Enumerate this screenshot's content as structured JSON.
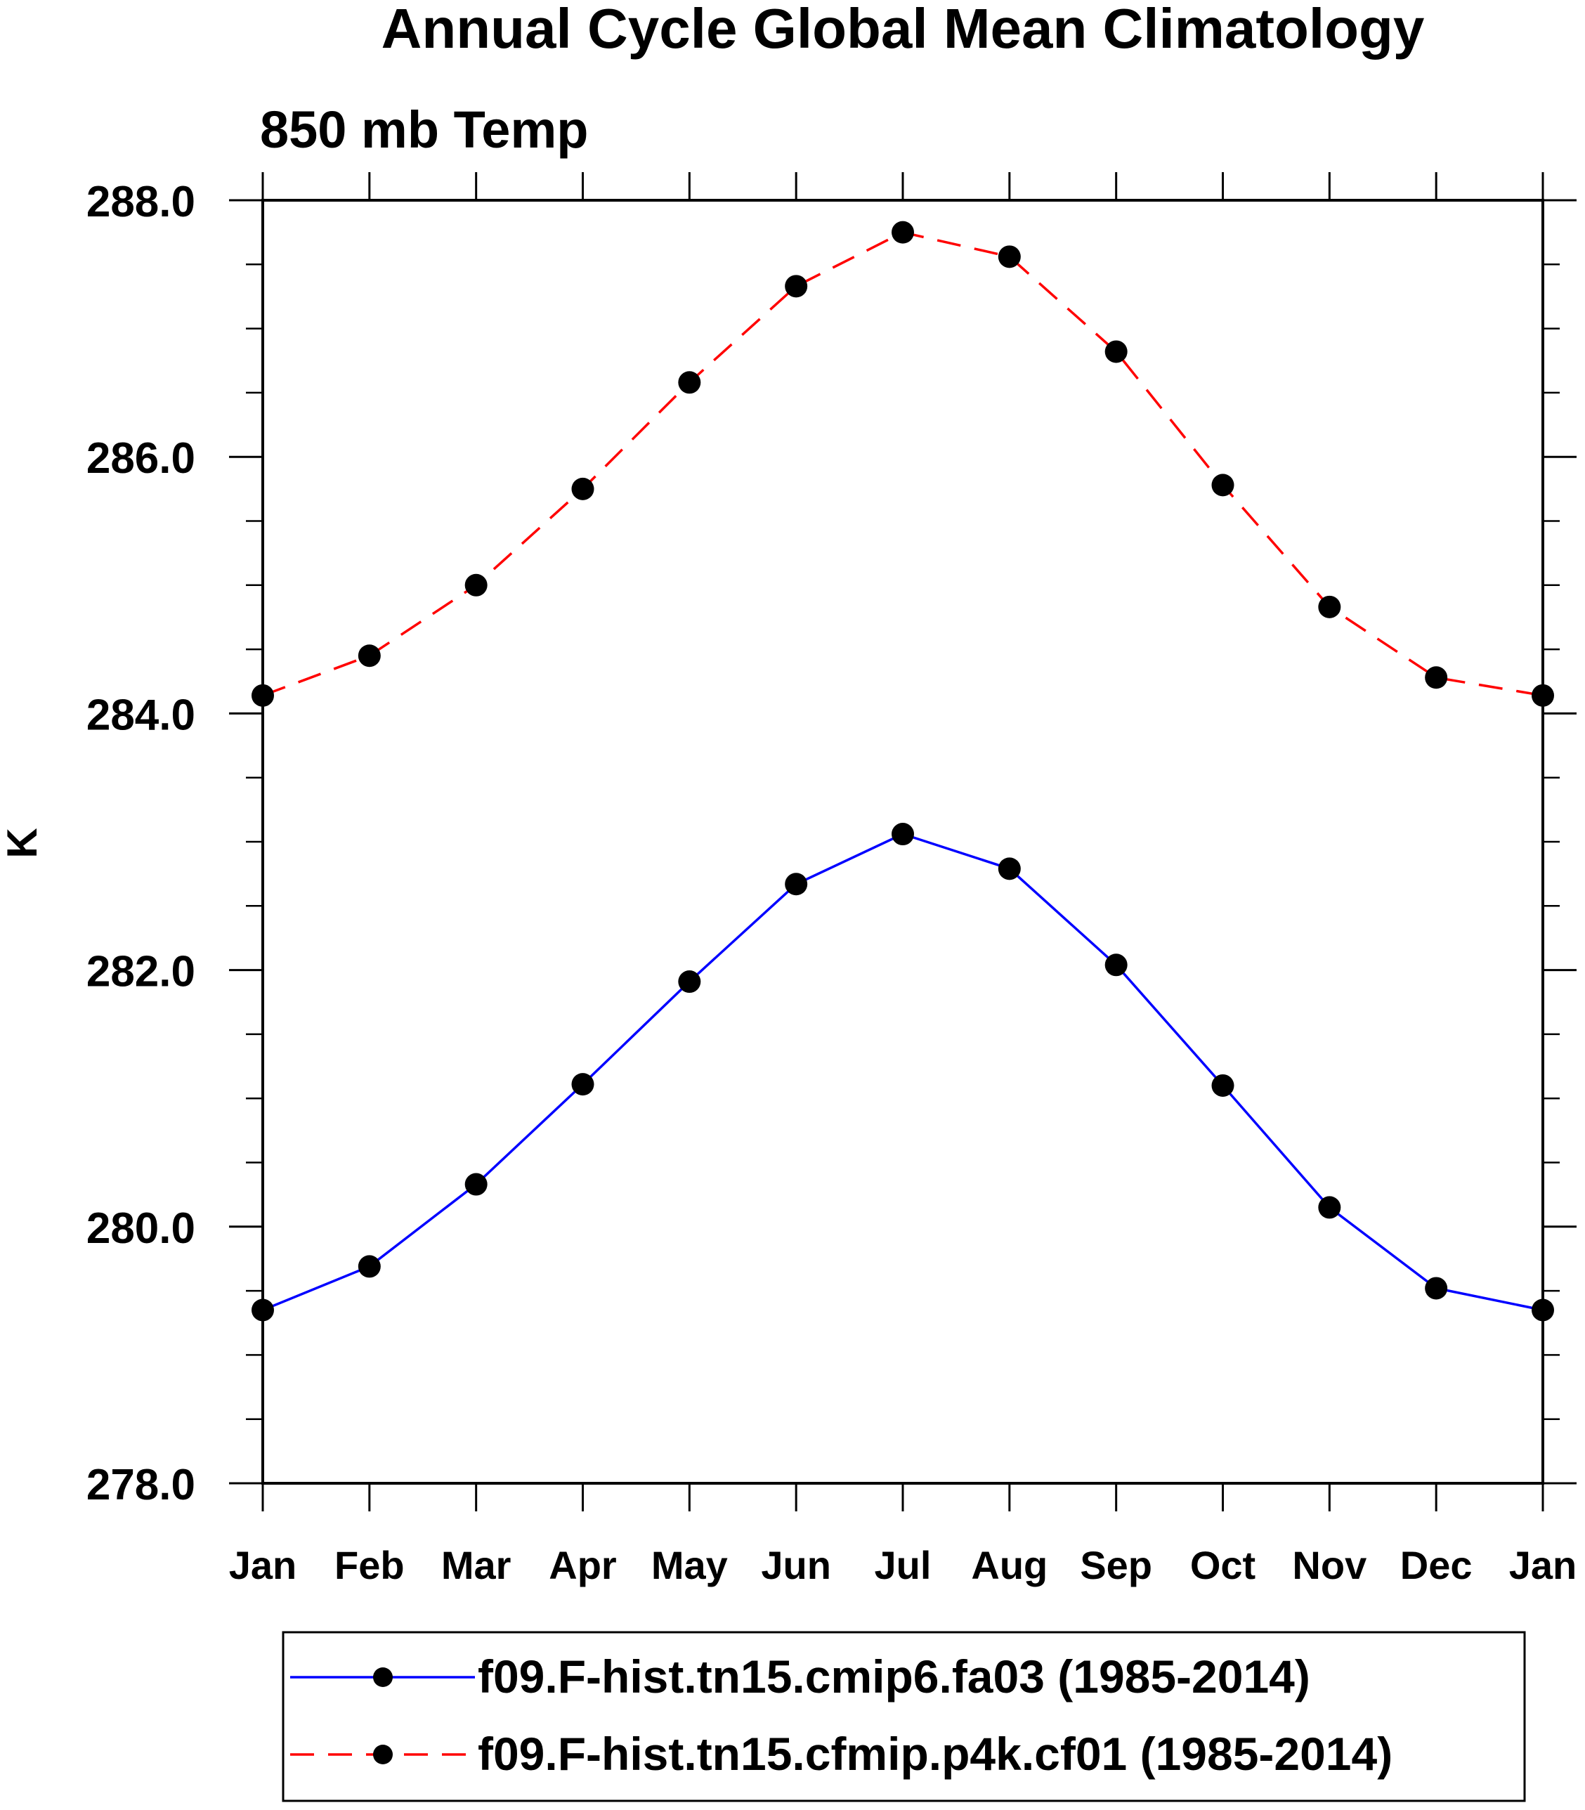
{
  "chart_data": {
    "type": "line",
    "title": "Annual Cycle Global Mean Climatology",
    "subtitle": "850 mb Temp",
    "xlabel": "",
    "ylabel": "K",
    "categories": [
      "Jan",
      "Feb",
      "Mar",
      "Apr",
      "May",
      "Jun",
      "Jul",
      "Aug",
      "Sep",
      "Oct",
      "Nov",
      "Dec",
      "Jan"
    ],
    "ylim": [
      278.0,
      288.0
    ],
    "yticks": [
      "278.0",
      "280.0",
      "282.0",
      "284.0",
      "286.0",
      "288.0"
    ],
    "y_minor_step": 0.5,
    "grid": false,
    "legend_position": "bottom",
    "series": [
      {
        "name": "f09.F-hist.tn15.cmip6.fa03 (1985-2014)",
        "color": "#0000ff",
        "line_style": "solid",
        "marker": "filled-circle",
        "values": [
          279.35,
          279.69,
          280.33,
          281.11,
          281.91,
          282.67,
          283.06,
          282.79,
          282.04,
          281.1,
          280.15,
          279.52,
          279.35
        ]
      },
      {
        "name": "f09.F-hist.tn15.cfmip.p4k.cf01 (1985-2014)",
        "color": "#ff0000",
        "line_style": "dashed",
        "marker": "filled-circle",
        "values": [
          284.14,
          284.45,
          285.0,
          285.75,
          286.58,
          287.33,
          287.75,
          287.56,
          286.82,
          285.78,
          284.83,
          284.28,
          284.14
        ]
      }
    ]
  }
}
